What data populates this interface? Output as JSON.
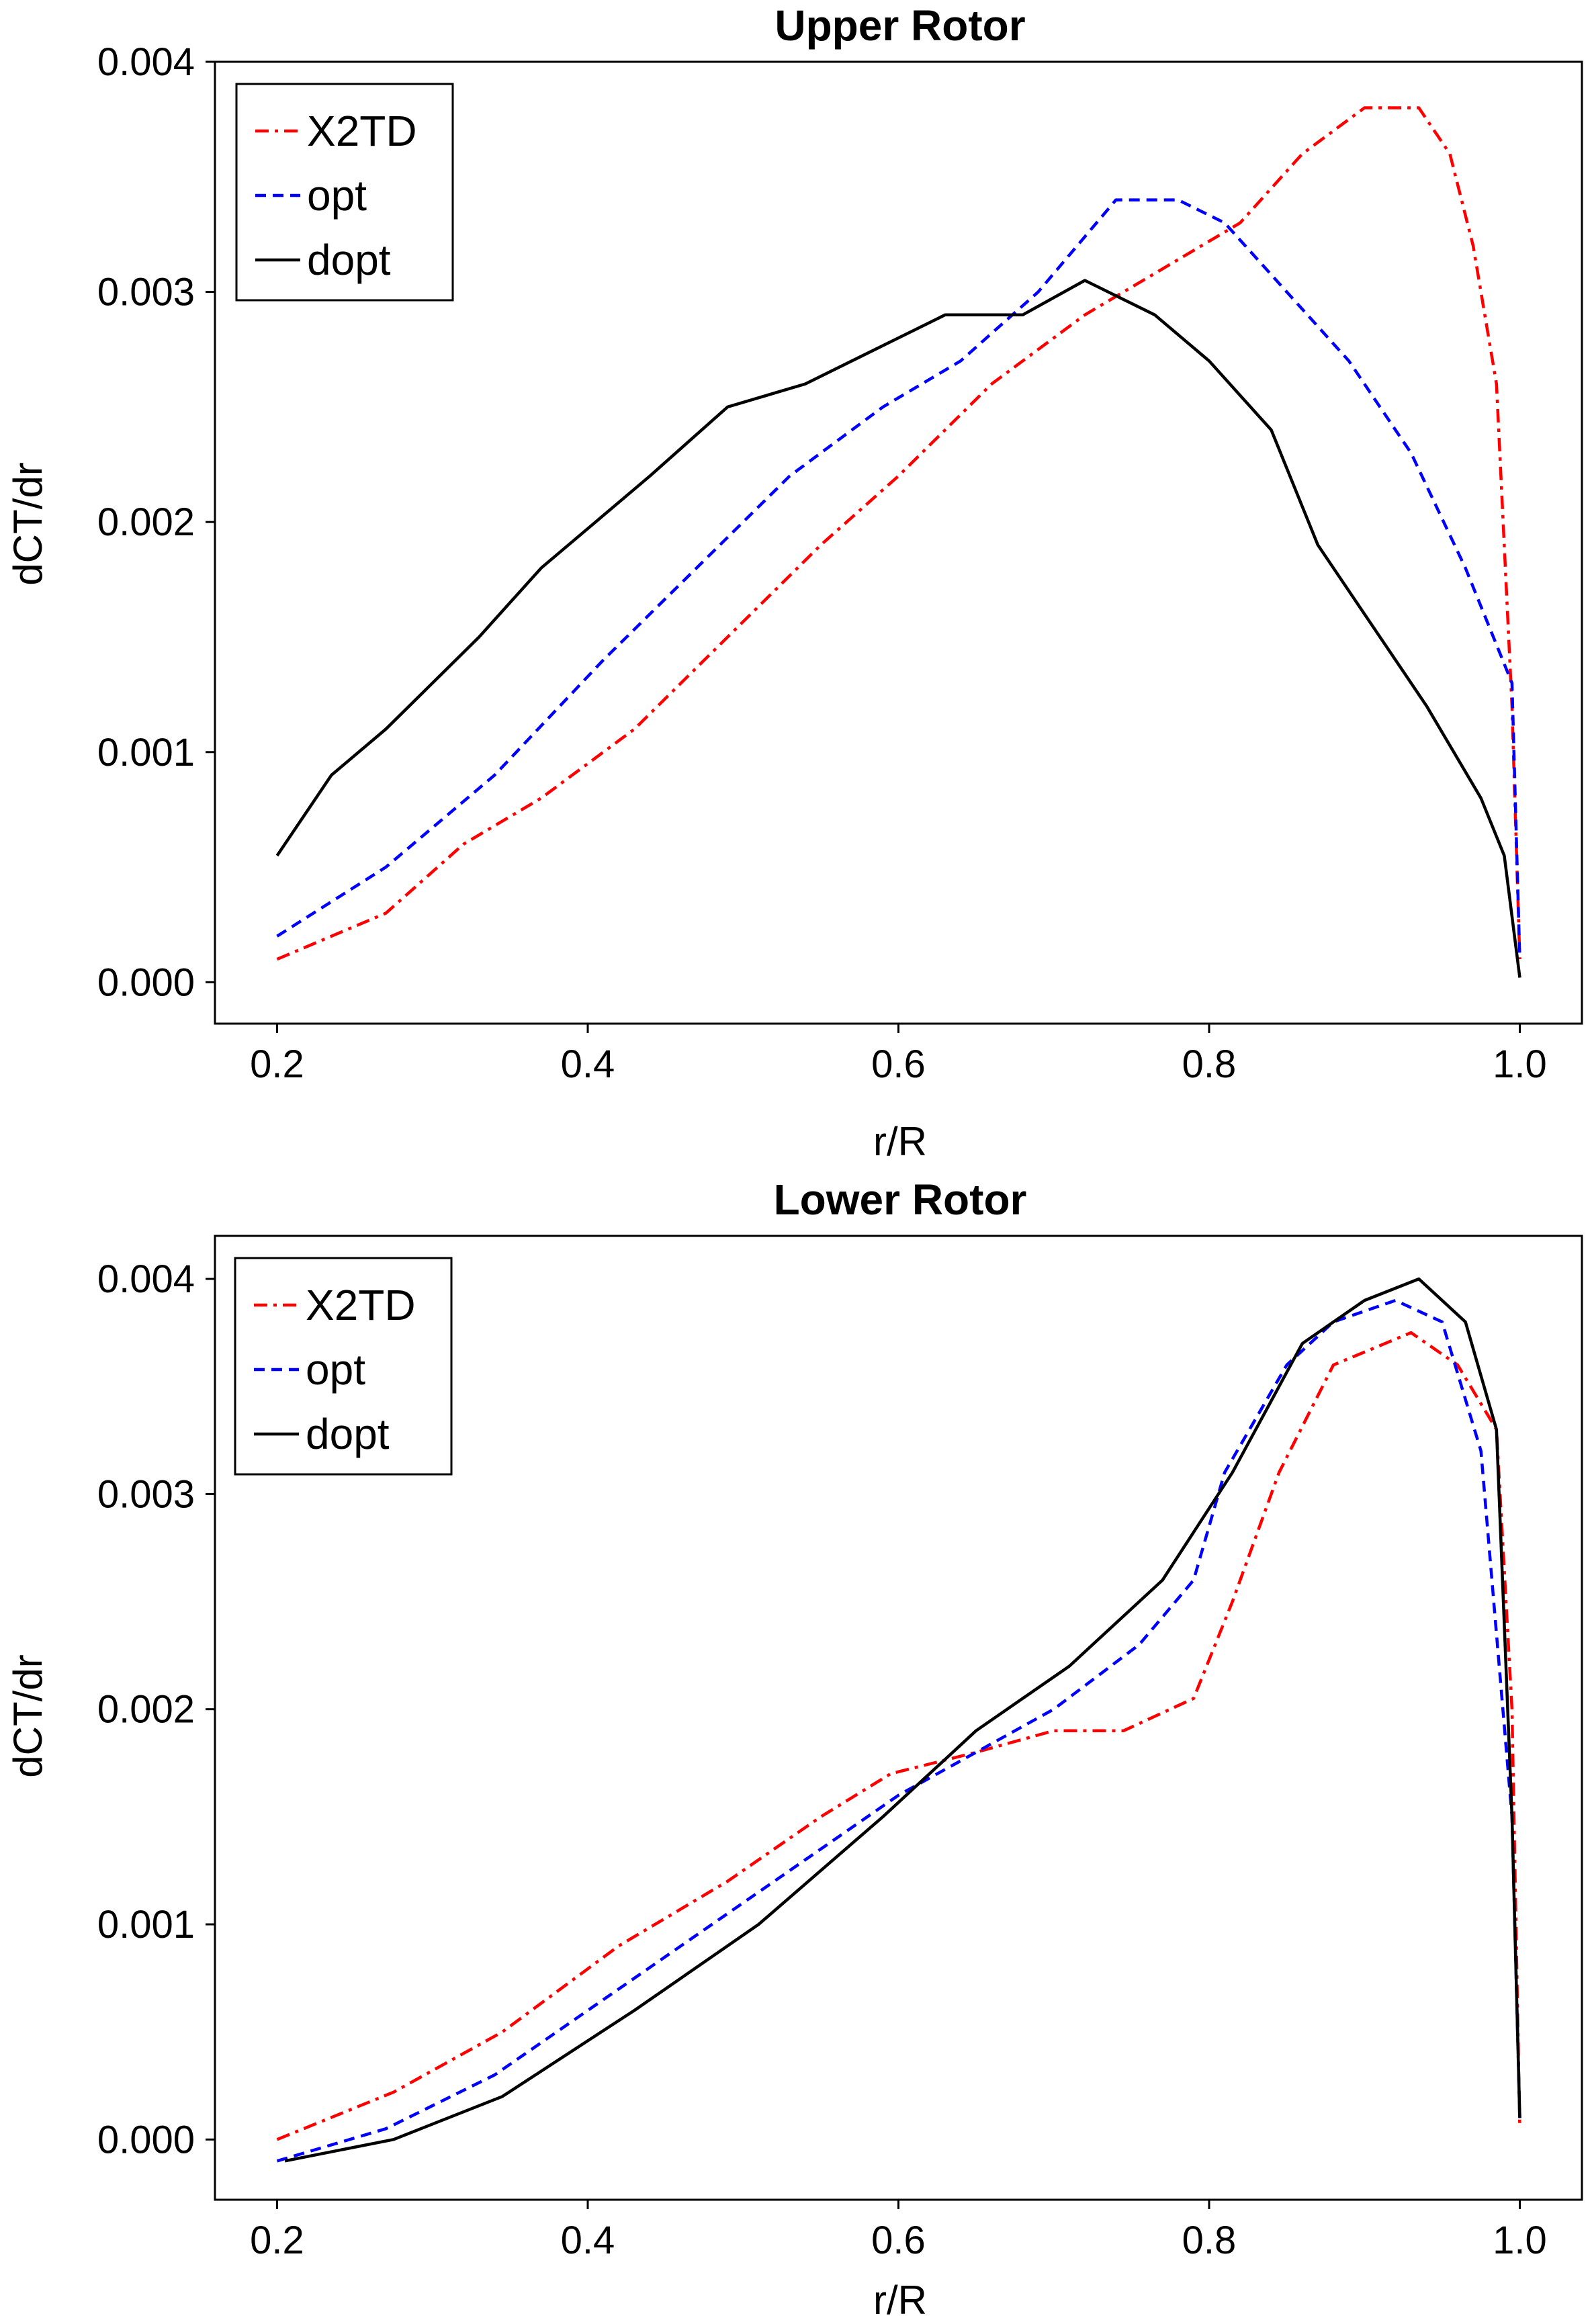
{
  "chart_data": [
    {
      "type": "line",
      "title": "Upper Rotor",
      "xlabel": "r/R",
      "ylabel": "dCT/dr",
      "xlim": [
        0.16,
        1.04
      ],
      "ylim": [
        -0.00018,
        0.004
      ],
      "xticks": [
        "0.2",
        "0.4",
        "0.6",
        "0.8",
        "1.0"
      ],
      "xtick_values": [
        0.2,
        0.4,
        0.6,
        0.8,
        1.0
      ],
      "yticks": [
        "0.000",
        "0.001",
        "0.002",
        "0.003",
        "0.004"
      ],
      "ytick_values": [
        0.0,
        0.001,
        0.002,
        0.003,
        0.004
      ],
      "legend_position": "top-left",
      "series": [
        {
          "name": "X2TD",
          "color": "#ff0000",
          "style": "dashdot",
          "x": [
            0.2,
            0.235,
            0.27,
            0.32,
            0.37,
            0.43,
            0.49,
            0.55,
            0.6,
            0.66,
            0.72,
            0.77,
            0.82,
            0.86,
            0.9,
            0.935,
            0.955,
            0.97,
            0.985,
            0.995,
            1.0
          ],
          "y": [
            0.0001,
            0.0002,
            0.0003,
            0.0006,
            0.0008,
            0.0011,
            0.0015,
            0.0019,
            0.0022,
            0.0026,
            0.0029,
            0.0031,
            0.0033,
            0.0036,
            0.0038,
            0.0038,
            0.0036,
            0.0032,
            0.0026,
            0.0012,
            0.0001
          ]
        },
        {
          "name": "opt",
          "color": "#0000ff",
          "style": "dashed",
          "x": [
            0.2,
            0.27,
            0.34,
            0.41,
            0.47,
            0.53,
            0.59,
            0.64,
            0.69,
            0.74,
            0.78,
            0.81,
            0.85,
            0.89,
            0.93,
            0.965,
            0.995,
            1.0
          ],
          "y": [
            0.0002,
            0.0005,
            0.0009,
            0.0014,
            0.0018,
            0.0022,
            0.0025,
            0.0027,
            0.003,
            0.0034,
            0.0034,
            0.0033,
            0.003,
            0.0027,
            0.0023,
            0.0018,
            0.0013,
            0.0001
          ]
        },
        {
          "name": "dopt",
          "color": "#000000",
          "style": "solid",
          "x": [
            0.2,
            0.235,
            0.27,
            0.33,
            0.37,
            0.44,
            0.49,
            0.54,
            0.6,
            0.63,
            0.68,
            0.72,
            0.765,
            0.8,
            0.84,
            0.87,
            0.9,
            0.94,
            0.975,
            0.99,
            1.0
          ],
          "y": [
            0.00055,
            0.0009,
            0.0011,
            0.0015,
            0.0018,
            0.0022,
            0.0025,
            0.0026,
            0.0028,
            0.0029,
            0.0029,
            0.00305,
            0.0029,
            0.0027,
            0.0024,
            0.0019,
            0.0016,
            0.0012,
            0.0008,
            0.00055,
            2e-05
          ]
        }
      ]
    },
    {
      "type": "line",
      "title": "Lower Rotor",
      "xlabel": "r/R",
      "ylabel": "dCT/dr",
      "xlim": [
        0.16,
        1.04
      ],
      "ylim": [
        -0.00028,
        0.0042
      ],
      "xticks": [
        "0.2",
        "0.4",
        "0.6",
        "0.8",
        "1.0"
      ],
      "xtick_values": [
        0.2,
        0.4,
        0.6,
        0.8,
        1.0
      ],
      "yticks": [
        "0.000",
        "0.001",
        "0.002",
        "0.003",
        "0.004"
      ],
      "ytick_values": [
        0.0,
        0.001,
        0.002,
        0.003,
        0.004
      ],
      "legend_position": "top-left",
      "series": [
        {
          "name": "X2TD",
          "color": "#ff0000",
          "style": "dashdot",
          "x": [
            0.2,
            0.275,
            0.345,
            0.42,
            0.49,
            0.55,
            0.595,
            0.65,
            0.7,
            0.745,
            0.79,
            0.815,
            0.845,
            0.88,
            0.93,
            0.96,
            0.985,
            0.995,
            1.0
          ],
          "y": [
            0.0,
            0.00022,
            0.0005,
            0.0009,
            0.0012,
            0.0015,
            0.0017,
            0.0018,
            0.0019,
            0.0019,
            0.00205,
            0.0025,
            0.0031,
            0.0036,
            0.00375,
            0.0036,
            0.0033,
            0.002,
            5e-05
          ]
        },
        {
          "name": "opt",
          "color": "#0000ff",
          "style": "dashed",
          "x": [
            0.2,
            0.27,
            0.34,
            0.42,
            0.48,
            0.54,
            0.6,
            0.65,
            0.7,
            0.755,
            0.79,
            0.81,
            0.85,
            0.88,
            0.92,
            0.95,
            0.975,
            0.995,
            1.0
          ],
          "y": [
            -0.0001,
            5e-05,
            0.0003,
            0.0007,
            0.001,
            0.0013,
            0.0016,
            0.0018,
            0.002,
            0.0023,
            0.0026,
            0.0031,
            0.0036,
            0.0038,
            0.0039,
            0.0038,
            0.0032,
            0.0015,
            0.0001
          ]
        },
        {
          "name": "dopt",
          "color": "#000000",
          "style": "solid",
          "x": [
            0.205,
            0.275,
            0.345,
            0.43,
            0.51,
            0.59,
            0.65,
            0.71,
            0.77,
            0.815,
            0.86,
            0.9,
            0.935,
            0.965,
            0.985,
            0.995,
            1.0
          ],
          "y": [
            -0.0001,
            0.0,
            0.0002,
            0.0006,
            0.001,
            0.0015,
            0.0019,
            0.0022,
            0.0026,
            0.0031,
            0.0037,
            0.0039,
            0.004,
            0.0038,
            0.0033,
            0.0015,
            0.0001
          ]
        }
      ]
    }
  ]
}
